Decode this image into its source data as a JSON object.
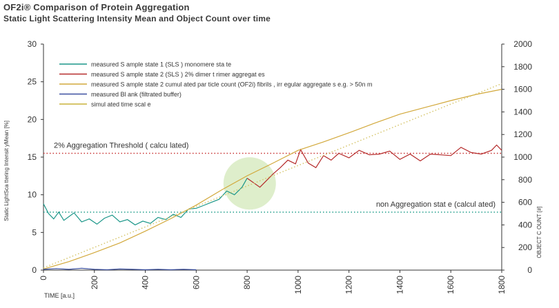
{
  "header": {
    "title": "OF2i® Comparison of Protein Aggregation",
    "subtitle": "Static Light Scattering Intensity Mean and Object Count over time"
  },
  "chart_data": {
    "type": "line",
    "title": "OF2i® Comparison of Protein Aggregation",
    "subtitle": "Static Light Scattering Intensity Mean and Object Count over time",
    "xlabel": "TIME [a.u.]",
    "ylabel_left": "Static LightSca ttering Intensit yMean [%]",
    "ylabel_right": "OBJECT C OUNT [#]",
    "xlim": [
      0,
      1800
    ],
    "ylim_left": [
      0,
      30
    ],
    "ylim_right": [
      0,
      2000
    ],
    "x_ticks": [
      "0",
      "200",
      "400",
      "600",
      "800",
      "1000",
      "1200",
      "1400",
      "1600",
      "1800"
    ],
    "y_left_ticks": [
      "0",
      "5",
      "10",
      "15",
      "20",
      "25",
      "30"
    ],
    "y_right_ticks": [
      "0",
      "200",
      "400",
      "600",
      "800",
      "1000",
      "1200",
      "1400",
      "1600",
      "1800",
      "2000"
    ],
    "grid": false,
    "legend_position": "top-left",
    "series": [
      {
        "name": "measured S ample state 1 (SLS ) monomere sta te",
        "axis": "left",
        "color": "#1a9688",
        "x": [
          0,
          20,
          40,
          60,
          80,
          100,
          120,
          150,
          180,
          210,
          240,
          270,
          300,
          330,
          360,
          390,
          420,
          450,
          480,
          510,
          540,
          570,
          600,
          630,
          660,
          690,
          720,
          750,
          780,
          800
        ],
        "y": [
          8.8,
          7.5,
          6.8,
          7.7,
          6.6,
          7.1,
          7.6,
          6.4,
          6.8,
          6.1,
          6.9,
          7.3,
          6.4,
          6.7,
          6.0,
          6.5,
          6.2,
          7.0,
          6.7,
          7.4,
          7.0,
          8.1,
          8.2,
          8.6,
          9.0,
          9.4,
          10.5,
          10.0,
          11.0,
          12.2
        ]
      },
      {
        "name": "measured S ample state 2 (SLS ) 2% dimer t rimer aggregat es",
        "axis": "left",
        "color": "#b52a2a",
        "x": [
          800,
          850,
          900,
          930,
          960,
          990,
          1010,
          1040,
          1070,
          1100,
          1130,
          1160,
          1200,
          1240,
          1280,
          1320,
          1360,
          1400,
          1440,
          1480,
          1520,
          1560,
          1600,
          1640,
          1680,
          1720,
          1760,
          1780,
          1800
        ],
        "y": [
          12.2,
          11.0,
          12.7,
          13.6,
          14.6,
          14.1,
          16.0,
          14.2,
          13.6,
          15.2,
          14.6,
          15.5,
          14.9,
          15.9,
          15.3,
          15.4,
          15.8,
          14.7,
          15.4,
          14.5,
          15.4,
          15.3,
          15.2,
          16.3,
          15.6,
          15.4,
          15.9,
          16.6,
          15.9
        ]
      },
      {
        "name": "measured S ample state 2 cumul ated par ticle count (OF2i) fibrils , irr egular aggregate s e.g. > 50n m",
        "axis": "right",
        "color": "#d2a83a",
        "x": [
          0,
          100,
          200,
          300,
          400,
          500,
          600,
          700,
          800,
          900,
          1000,
          1100,
          1200,
          1300,
          1400,
          1500,
          1600,
          1700,
          1800
        ],
        "y": [
          10,
          75,
          155,
          240,
          345,
          455,
          575,
          710,
          835,
          945,
          1060,
          1135,
          1215,
          1300,
          1380,
          1440,
          1500,
          1555,
          1600
        ]
      },
      {
        "name": "measured Bl ank (filtrated buffer)",
        "axis": "left",
        "color": "#3a4fa0",
        "x": [
          0,
          50,
          100,
          150,
          200,
          250,
          300,
          350,
          400,
          450,
          500,
          550,
          600
        ],
        "y": [
          0.1,
          0.2,
          0.1,
          0.25,
          0.1,
          0.05,
          0.15,
          0.1,
          0.05,
          0.1,
          0.05,
          0.1,
          0.05
        ]
      },
      {
        "name": "simul ated time scal e",
        "axis": "right",
        "color": "#d6c56a",
        "style": "dotted",
        "x": [
          0,
          1800
        ],
        "y": [
          20,
          1650
        ]
      }
    ],
    "annotations": [
      {
        "label": "2% Aggregation Threshold  ( calcu lated)",
        "axis": "left",
        "y": 15.5,
        "color": "#c83232"
      },
      {
        "label": "non Aggregation stat e (calcul ated)",
        "axis": "left",
        "y": 7.7,
        "color": "#1e9c8a"
      }
    ],
    "highlight": {
      "x": 810,
      "y_left": 11.5,
      "color": "#c8e3a8"
    }
  }
}
